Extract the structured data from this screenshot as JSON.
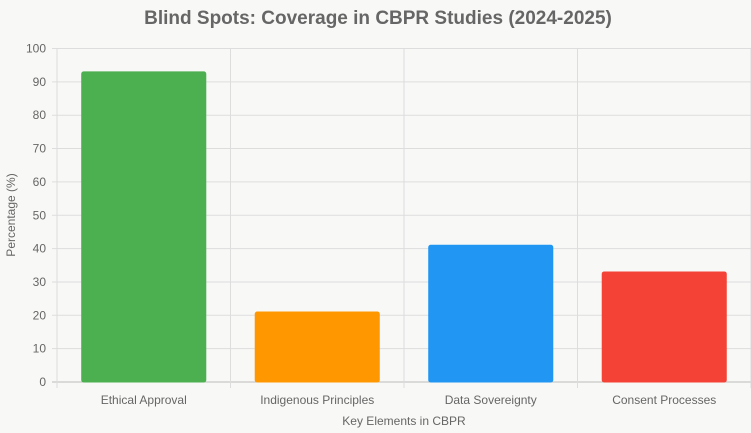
{
  "chart_data": {
    "type": "bar",
    "title": "Blind Spots: Coverage in CBPR Studies (2024-2025)",
    "xlabel": "Key Elements in CBPR",
    "ylabel": "Percentage (%)",
    "ylim": [
      0,
      100
    ],
    "yticks": [
      0,
      10,
      20,
      30,
      40,
      50,
      60,
      70,
      80,
      90,
      100
    ],
    "grid": true,
    "categories": [
      "Ethical Approval",
      "Indigenous Principles",
      "Data Sovereignty",
      "Consent Processes"
    ],
    "values": [
      93,
      21,
      41,
      33
    ],
    "colors": [
      "#4caf50",
      "#ff9800",
      "#2196f3",
      "#f44336"
    ]
  }
}
